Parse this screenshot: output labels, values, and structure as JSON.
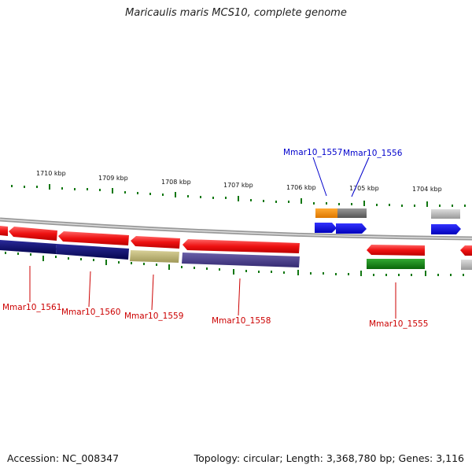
{
  "title": "Maricaulis maris MCS10, complete genome",
  "footer": {
    "accession": "Accession: NC_008347",
    "topology": "Topology: circular; Length: 3,368,780 bp; Genes: 3,116"
  },
  "kbp_labels": [
    "1710 kbp",
    "1709 kbp",
    "1708 kbp",
    "1707 kbp",
    "1706 kbp",
    "1705 kbp",
    "1704 kbp"
  ],
  "gene_labels_top": [
    "Mmar10_1557",
    "Mmar10_1556"
  ],
  "gene_labels_bottom": [
    "Mmar10_1561",
    "Mmar10_1560",
    "Mmar10_1559",
    "Mmar10_1558",
    "Mmar10_1555"
  ],
  "colors": {
    "red": "#ee1111",
    "navy": "#0a0a6e",
    "olive": "#b8b070",
    "slate": "#4a3f8a",
    "orange": "#ff8800",
    "gray": "#777777",
    "blue": "#0000ee",
    "green": "#118811",
    "lightgray": "#bbbbbb",
    "tick": "#117711",
    "backbone": "#888888"
  }
}
